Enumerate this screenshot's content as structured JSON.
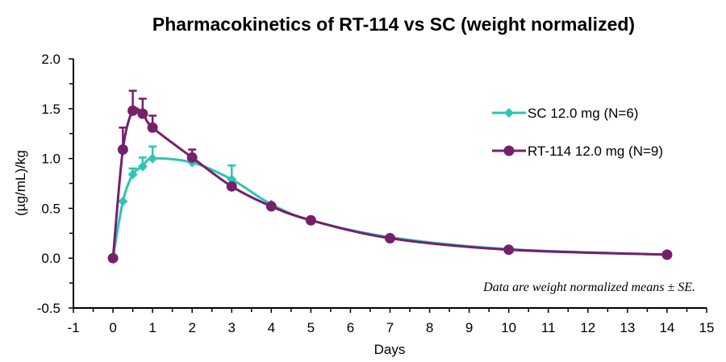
{
  "chart_data": {
    "type": "line",
    "title": "Pharmacokinetics of RT-114 vs SC (weight normalized)",
    "xlabel": "Days",
    "ylabel": "(µg/mL)/kg",
    "xlim": [
      -1,
      15
    ],
    "ylim": [
      -0.5,
      2.0
    ],
    "xticks": [
      -1,
      0,
      1,
      2,
      3,
      4,
      5,
      6,
      7,
      8,
      9,
      10,
      11,
      12,
      13,
      14,
      15
    ],
    "xtick_labels": [
      "-1",
      "0",
      "1",
      "2",
      "3",
      "4",
      "5",
      "6",
      "7",
      "8",
      "9",
      "10",
      "11",
      "12",
      "13",
      "14",
      "15"
    ],
    "yticks": [
      -0.5,
      0.0,
      0.5,
      1.0,
      1.5,
      2.0
    ],
    "ytick_labels": [
      "-0.5",
      "0.0",
      "0.5",
      "1.0",
      "1.5",
      "2.0"
    ],
    "grid": false,
    "legend_position": "top-right",
    "annotation": "Data are weight normalized means ± SE.",
    "series": [
      {
        "name": "SC 12.0 mg (N=6)",
        "color": "#2EC4B6",
        "marker": "diamond",
        "x": [
          0,
          0.25,
          0.5,
          0.75,
          1,
          2,
          3,
          4,
          5,
          7,
          10,
          14
        ],
        "y": [
          0.0,
          0.57,
          0.84,
          0.92,
          1.0,
          0.96,
          0.79,
          0.54,
          0.38,
          0.21,
          0.09,
          0.035
        ],
        "se": [
          0,
          0,
          0.06,
          0.09,
          0.12,
          0,
          0.14,
          0,
          0,
          0,
          0,
          0
        ]
      },
      {
        "name": "RT-114 12.0 mg (N=9)",
        "color": "#76206A",
        "marker": "circle",
        "x": [
          0,
          0.25,
          0.5,
          0.75,
          1,
          2,
          3,
          4,
          5,
          7,
          10,
          14
        ],
        "y": [
          0.0,
          1.09,
          1.48,
          1.45,
          1.31,
          1.01,
          0.72,
          0.52,
          0.38,
          0.2,
          0.085,
          0.035
        ],
        "se": [
          0,
          0.22,
          0.2,
          0.15,
          0.12,
          0.08,
          0,
          0,
          0,
          0,
          0,
          0
        ]
      }
    ]
  }
}
